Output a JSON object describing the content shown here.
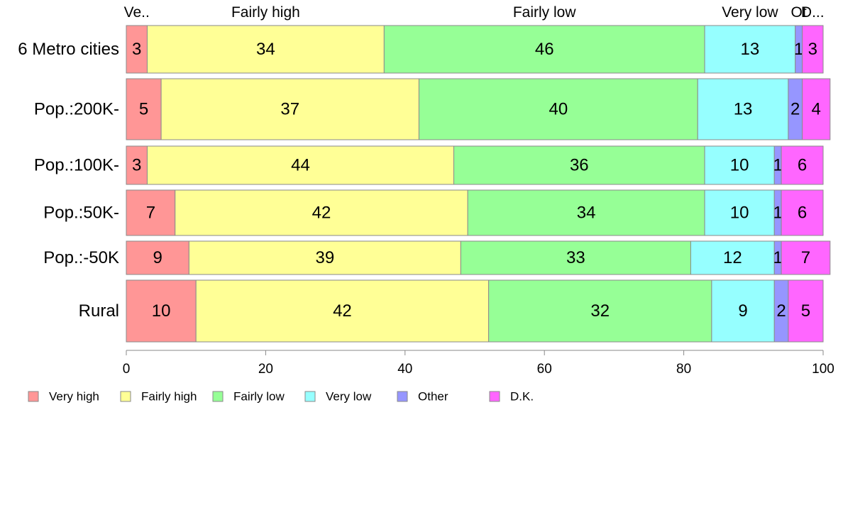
{
  "chart_data": {
    "type": "bar",
    "orientation": "horizontal",
    "stacked": "percent",
    "categories": [
      "6 Metro cities",
      "Pop.:200K-",
      "Pop.:100K-",
      "Pop.:50K-",
      "Pop.:-50K",
      "Rural"
    ],
    "series": [
      {
        "name": "Very high",
        "values": [
          3,
          5,
          3,
          7,
          9,
          10
        ]
      },
      {
        "name": "Fairly high",
        "values": [
          34,
          37,
          44,
          42,
          39,
          42
        ]
      },
      {
        "name": "Fairly low",
        "values": [
          46,
          40,
          36,
          34,
          33,
          32
        ]
      },
      {
        "name": "Very low",
        "values": [
          13,
          13,
          10,
          10,
          12,
          9
        ]
      },
      {
        "name": "Other",
        "values": [
          1,
          2,
          1,
          1,
          1,
          2
        ]
      },
      {
        "name": "D.K.",
        "values": [
          3,
          4,
          6,
          6,
          7,
          5
        ]
      }
    ],
    "colors": [
      "#ff9696",
      "#ffff96",
      "#96ff96",
      "#96ffff",
      "#9696ff",
      "#ff66ff"
    ],
    "top_labels": [
      "Ve..",
      "Fairly high",
      "Fairly low",
      "Very low",
      "Ot",
      "D..."
    ],
    "xlim": [
      0,
      100
    ],
    "xticks": [
      0,
      20,
      40,
      60,
      80,
      100
    ],
    "legend": {
      "position": "bottom",
      "labels": [
        "Very high",
        "Fairly high",
        "Fairly low",
        "Very low",
        "Other",
        "D.K."
      ]
    },
    "grid": false
  }
}
